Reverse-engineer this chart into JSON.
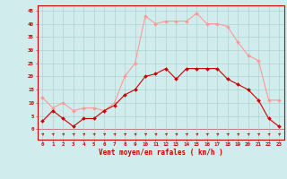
{
  "x": [
    0,
    1,
    2,
    3,
    4,
    5,
    6,
    7,
    8,
    9,
    10,
    11,
    12,
    13,
    14,
    15,
    16,
    17,
    18,
    19,
    20,
    21,
    22,
    23
  ],
  "wind_mean": [
    3,
    7,
    4,
    1,
    4,
    4,
    7,
    9,
    13,
    15,
    20,
    21,
    23,
    19,
    23,
    23,
    23,
    23,
    19,
    17,
    15,
    11,
    4,
    1
  ],
  "wind_gust": [
    12,
    8,
    10,
    7,
    8,
    8,
    7,
    10,
    20,
    25,
    43,
    40,
    41,
    41,
    41,
    44,
    40,
    40,
    39,
    33,
    28,
    26,
    11,
    11
  ],
  "mean_color": "#cc0000",
  "gust_color": "#ff9999",
  "bg_color": "#d0ecec",
  "grid_color": "#aacaca",
  "axis_color": "#cc0000",
  "xlabel": "Vent moyen/en rafales ( km/h )",
  "yticks": [
    0,
    5,
    10,
    15,
    20,
    25,
    30,
    35,
    40,
    45
  ],
  "ylim": [
    -4,
    47
  ],
  "xlim": [
    -0.5,
    23.5
  ],
  "figsize": [
    3.2,
    2.0
  ],
  "dpi": 100
}
